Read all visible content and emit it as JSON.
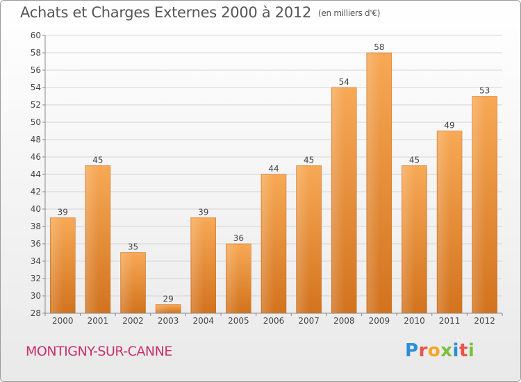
{
  "title": "Achats et Charges Externes 2000 à 2012",
  "unit": "(en milliers d'€)",
  "commune": "MONTIGNY-SUR-CANNE",
  "logo": {
    "chars": [
      "P",
      "r",
      "o",
      "x",
      "i",
      "t",
      "i"
    ],
    "colors": [
      "#2a8fd6",
      "#e8534a",
      "#f5a623",
      "#7bbf3a",
      "#2a8fd6",
      "#e8534a",
      "#7bbf3a"
    ]
  },
  "chart_data": {
    "type": "bar",
    "categories": [
      "2000",
      "2001",
      "2002",
      "2003",
      "2004",
      "2005",
      "2006",
      "2007",
      "2008",
      "2009",
      "2010",
      "2011",
      "2012"
    ],
    "values": [
      39,
      45,
      35,
      29,
      39,
      36,
      44,
      45,
      54,
      58,
      45,
      49,
      53
    ],
    "ylim": [
      28,
      60
    ],
    "yticks": [
      28,
      30,
      32,
      34,
      36,
      38,
      40,
      42,
      44,
      46,
      48,
      50,
      52,
      54,
      56,
      58,
      60
    ],
    "grid": true,
    "bar_color": "#f0943a"
  }
}
